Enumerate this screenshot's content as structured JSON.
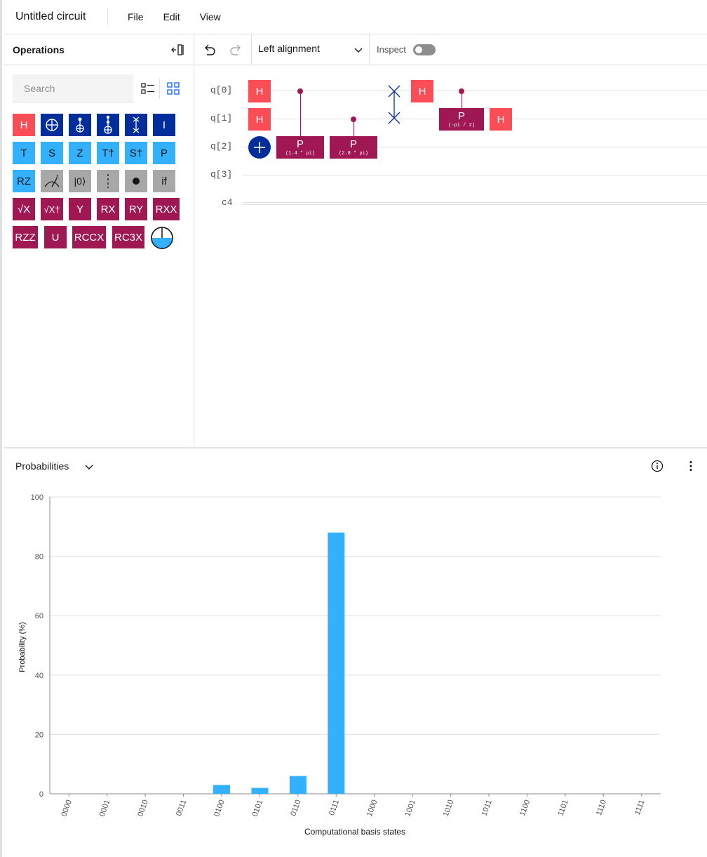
{
  "menubar": {
    "title": "Untitled circuit",
    "items": [
      "File",
      "Edit",
      "View"
    ]
  },
  "operations": {
    "title": "Operations",
    "search_placeholder": "Search",
    "gates": [
      [
        "H",
        "CNOT",
        "Toffoli",
        "CCX",
        "SWAP",
        "I"
      ],
      [
        "T",
        "S",
        "Z",
        "T†",
        "S†",
        "P"
      ],
      [
        "RZ",
        "Measure",
        "|0⟩",
        "Barrier",
        "Control",
        "if"
      ],
      [
        "√X",
        "√X†",
        "Y",
        "RX",
        "RY",
        "RXX"
      ],
      [
        "RZZ",
        "U",
        "RCCX",
        "RC3X",
        "Probability"
      ]
    ]
  },
  "toolbar": {
    "alignment": "Left alignment",
    "inspect_label": "Inspect",
    "inspect_on": false
  },
  "circuit": {
    "qubits": [
      "q[0]",
      "q[1]",
      "q[2]",
      "q[3]"
    ],
    "classical": "c4",
    "gates": {
      "h": "H",
      "p": "P",
      "p1_param": "(1.4 * pi)",
      "p2_param": "(2.8 * pi)",
      "p3_param": "(-pi / 2)"
    }
  },
  "probabilities": {
    "title": "Probabilities"
  },
  "colors": {
    "h_gate": "#fa4d56",
    "blue_gate": "#002d9c",
    "light_blue_gate": "#33b1ff",
    "gray_gate": "#a8a8a8",
    "magenta_gate": "#9f1853",
    "bar": "#33b1ff"
  },
  "chart_data": {
    "type": "bar",
    "categories": [
      "0000",
      "0001",
      "0010",
      "0011",
      "0100",
      "0101",
      "0110",
      "0111",
      "1000",
      "1001",
      "1010",
      "1011",
      "1100",
      "1101",
      "1110",
      "1111"
    ],
    "values": [
      0,
      0,
      0,
      0,
      3,
      2,
      6,
      88,
      0,
      0,
      0,
      0,
      0,
      0,
      0,
      0
    ],
    "xlabel": "Computational basis states",
    "ylabel": "Probability (%)",
    "ylim": [
      0,
      100
    ],
    "yticks": [
      0,
      20,
      40,
      60,
      80,
      100
    ],
    "grid": true
  }
}
